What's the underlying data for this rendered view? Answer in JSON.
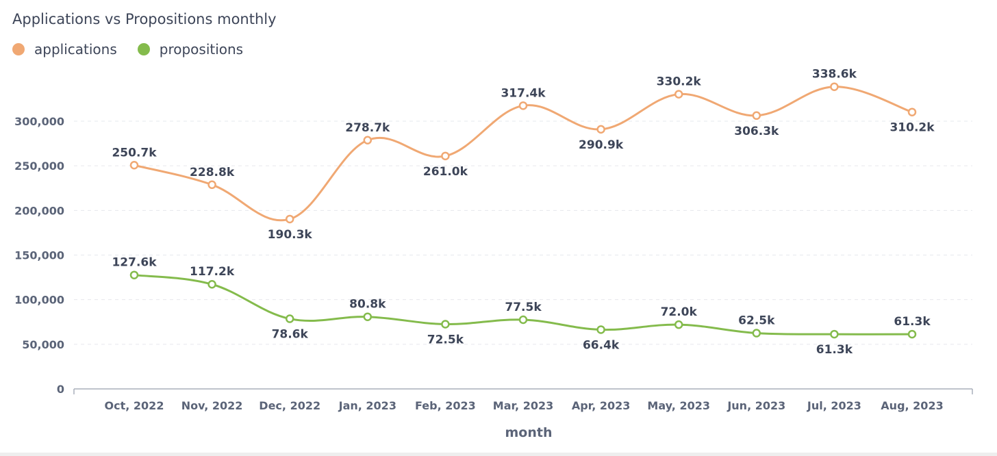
{
  "chart_data": {
    "type": "line",
    "title": "Applications vs Propositions monthly",
    "xlabel": "month",
    "ylabel": "",
    "categories": [
      "Oct, 2022",
      "Nov, 2022",
      "Dec, 2022",
      "Jan, 2023",
      "Feb, 2023",
      "Mar, 2023",
      "Apr, 2023",
      "May, 2023",
      "Jun, 2023",
      "Jul, 2023",
      "Aug, 2023"
    ],
    "series": [
      {
        "name": "applications",
        "color": "#f0a873",
        "values": [
          250700,
          228800,
          190300,
          278700,
          261000,
          317400,
          290900,
          330200,
          306300,
          338600,
          310200
        ],
        "labels": [
          "250.7k",
          "228.8k",
          "190.3k",
          "278.7k",
          "261.0k",
          "317.4k",
          "290.9k",
          "330.2k",
          "306.3k",
          "338.6k",
          "310.2k"
        ]
      },
      {
        "name": "propositions",
        "color": "#84bb4c",
        "values": [
          127600,
          117200,
          78600,
          80800,
          72500,
          77500,
          66400,
          72000,
          62500,
          61300,
          61300
        ],
        "labels": [
          "127.6k",
          "117.2k",
          "78.6k",
          "80.8k",
          "72.5k",
          "77.5k",
          "66.4k",
          "72.0k",
          "62.5k",
          "61.3k",
          "61.3k"
        ]
      }
    ],
    "y_ticks": [
      "0",
      "50,000",
      "100,000",
      "150,000",
      "200,000",
      "250,000",
      "300,000"
    ],
    "y_tick_values": [
      0,
      50000,
      100000,
      150000,
      200000,
      250000,
      300000
    ],
    "ylim": [
      0,
      350000
    ],
    "grid": true,
    "legend_position": "top-left"
  }
}
